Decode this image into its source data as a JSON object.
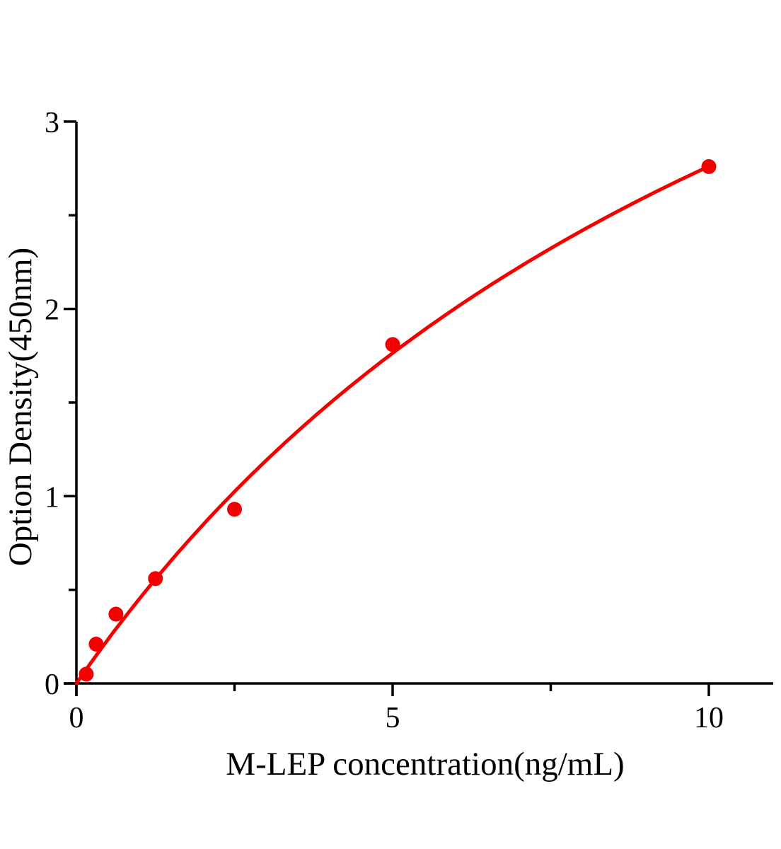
{
  "figure": {
    "background": "#ffffff"
  },
  "chart_data": {
    "type": "scatter",
    "title": "",
    "xlabel": "M-LEP concentration(ng/mL)",
    "ylabel": "Option Density(450nm)",
    "x": [
      0.156,
      0.3125,
      0.625,
      1.25,
      2.5,
      5,
      10
    ],
    "y": [
      0.05,
      0.21,
      0.37,
      0.56,
      0.93,
      1.81,
      2.76
    ],
    "xlim": [
      0,
      11
    ],
    "ylim": [
      0,
      3.05
    ],
    "x_major_ticks": [
      0,
      5,
      10
    ],
    "x_major_tick_labels": [
      "0",
      "5",
      "10"
    ],
    "x_minor_ticks": [
      2.5,
      7.5
    ],
    "y_major_ticks": [
      0,
      1,
      2,
      3
    ],
    "y_major_tick_labels": [
      "0",
      "1",
      "2",
      "3"
    ],
    "y_minor_ticks": [
      0.5,
      1.5,
      2.5
    ],
    "fit_curve": {
      "model": "saturation",
      "equation": "OD = a*x/(b+x)",
      "a": 6.35,
      "b": 13.0,
      "x_start": 0,
      "x_end": 10
    },
    "grid": false,
    "legend": false,
    "marker_color": "#f40000",
    "curve_color": "#f40000",
    "axis_color": "#000000"
  }
}
